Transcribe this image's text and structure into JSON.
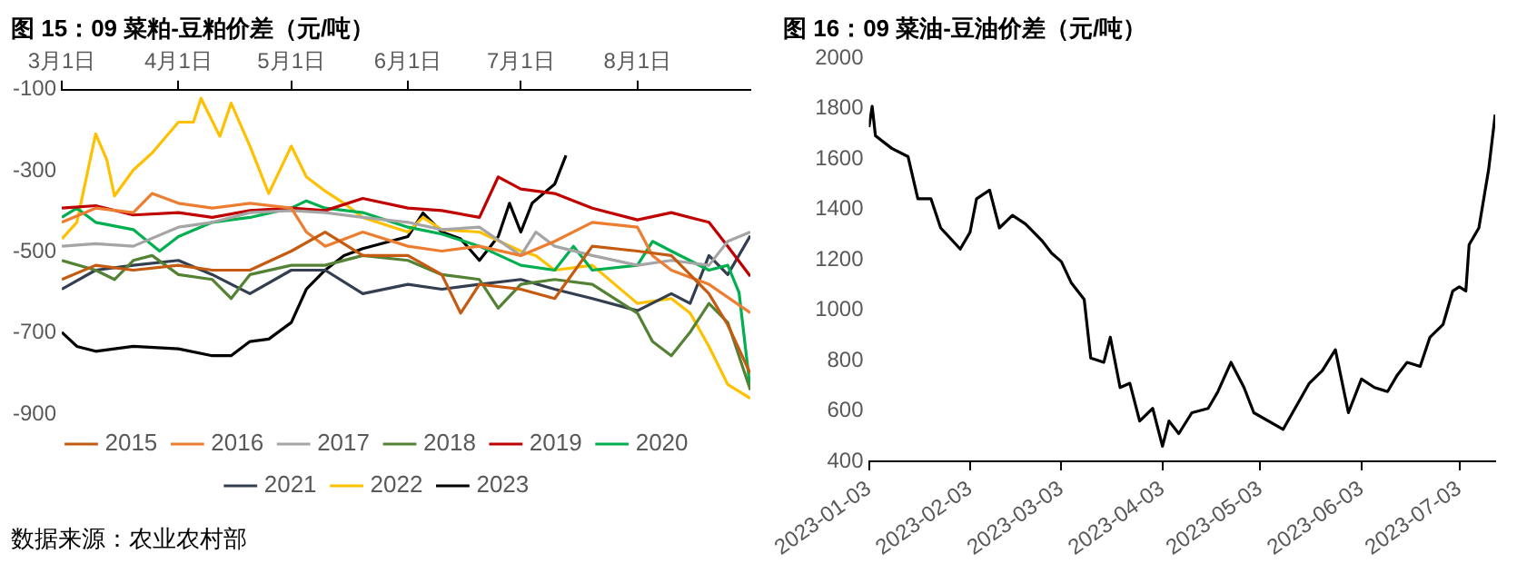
{
  "chart_data": [
    {
      "type": "line",
      "title": "图 15：09 菜粕-豆粕价差（元/吨）",
      "annotations": [
        "数据来源：农业农村部"
      ],
      "xlim": [
        "--03-01",
        "--08-31"
      ],
      "xticks": [
        {
          "value": "--03-01",
          "label": "3月1日"
        },
        {
          "value": "--04-01",
          "label": "4月1日"
        },
        {
          "value": "--05-01",
          "label": "5月1日"
        },
        {
          "value": "--06-01",
          "label": "6月1日"
        },
        {
          "value": "--07-01",
          "label": "7月1日"
        },
        {
          "value": "--08-01",
          "label": "8月1日"
        }
      ],
      "ylim": [
        -900,
        -100
      ],
      "yticks": [
        -100,
        -300,
        -500,
        -700,
        -900
      ],
      "grid": false,
      "legend": "bottom",
      "marker": "none",
      "line_style": "solid",
      "series": [
        {
          "name": "2015",
          "color": "#c55a11",
          "x": [
            "--03-01",
            "--03-10",
            "--03-20",
            "--04-01",
            "--04-10",
            "--04-20",
            "--05-01",
            "--05-10",
            "--05-20",
            "--06-01",
            "--06-10",
            "--06-15",
            "--06-20",
            "--07-01",
            "--07-10",
            "--07-20",
            "--08-01",
            "--08-10",
            "--08-20",
            "--08-25",
            "--08-31"
          ],
          "values": [
            -568,
            -533,
            -545,
            -533,
            -545,
            -545,
            -498,
            -451,
            -509,
            -509,
            -556,
            -651,
            -580,
            -592,
            -615,
            -486,
            -498,
            -509,
            -603,
            -680,
            -800
          ]
        },
        {
          "name": "2016",
          "color": "#ed7d31",
          "x": [
            "--03-01",
            "--03-10",
            "--03-20",
            "--03-25",
            "--04-01",
            "--04-10",
            "--04-20",
            "--05-01",
            "--05-05",
            "--05-10",
            "--05-20",
            "--06-01",
            "--06-10",
            "--06-20",
            "--07-01",
            "--07-10",
            "--07-20",
            "--08-01",
            "--08-05",
            "--08-10",
            "--08-20",
            "--08-31"
          ],
          "values": [
            -427,
            -392,
            -403,
            -356,
            -380,
            -392,
            -380,
            -392,
            -451,
            -486,
            -451,
            -486,
            -498,
            -486,
            -509,
            -474,
            -427,
            -439,
            -509,
            -545,
            -580,
            -650
          ]
        },
        {
          "name": "2017",
          "color": "#a5a5a5",
          "x": [
            "--03-01",
            "--03-10",
            "--03-20",
            "--04-01",
            "--04-10",
            "--04-20",
            "--05-01",
            "--05-10",
            "--05-20",
            "--06-01",
            "--06-10",
            "--06-20",
            "--07-01",
            "--07-05",
            "--07-10",
            "--07-20",
            "--08-01",
            "--08-10",
            "--08-20",
            "--08-25",
            "--08-31"
          ],
          "values": [
            -486,
            -480,
            -486,
            -439,
            -427,
            -403,
            -398,
            -403,
            -415,
            -427,
            -445,
            -439,
            -509,
            -451,
            -486,
            -509,
            -533,
            -521,
            -533,
            -474,
            -451
          ]
        },
        {
          "name": "2018",
          "color": "#548235",
          "x": [
            "--03-01",
            "--03-10",
            "--03-15",
            "--03-20",
            "--03-25",
            "--04-01",
            "--04-10",
            "--04-15",
            "--04-20",
            "--05-01",
            "--05-10",
            "--05-20",
            "--06-01",
            "--06-10",
            "--06-20",
            "--06-25",
            "--07-01",
            "--07-10",
            "--07-20",
            "--08-01",
            "--08-05",
            "--08-10",
            "--08-15",
            "--08-20",
            "--08-25",
            "--08-31"
          ],
          "values": [
            -521,
            -545,
            -568,
            -521,
            -509,
            -556,
            -568,
            -615,
            -556,
            -533,
            -533,
            -509,
            -521,
            -556,
            -568,
            -639,
            -580,
            -568,
            -580,
            -651,
            -721,
            -756,
            -698,
            -627,
            -674,
            -840
          ]
        },
        {
          "name": "2019",
          "color": "#c00000",
          "x": [
            "--03-01",
            "--03-10",
            "--03-20",
            "--04-01",
            "--04-10",
            "--04-20",
            "--05-01",
            "--05-10",
            "--05-20",
            "--06-01",
            "--06-10",
            "--06-20",
            "--06-25",
            "--07-01",
            "--07-10",
            "--07-20",
            "--08-01",
            "--08-10",
            "--08-20",
            "--08-25",
            "--08-31"
          ],
          "values": [
            -392,
            -386,
            -409,
            -403,
            -415,
            -398,
            -392,
            -398,
            -368,
            -392,
            -398,
            -415,
            -315,
            -345,
            -356,
            -392,
            -421,
            -403,
            -427,
            -486,
            -560
          ]
        },
        {
          "name": "2020",
          "color": "#00b050",
          "x": [
            "--03-01",
            "--03-05",
            "--03-10",
            "--03-20",
            "--03-27",
            "--04-01",
            "--04-10",
            "--04-20",
            "--05-01",
            "--05-05",
            "--05-10",
            "--05-20",
            "--06-01",
            "--06-10",
            "--06-20",
            "--07-01",
            "--07-10",
            "--07-15",
            "--07-20",
            "--08-01",
            "--08-05",
            "--08-10",
            "--08-20",
            "--08-25",
            "--08-28",
            "--08-31"
          ],
          "values": [
            -415,
            -392,
            -427,
            -445,
            -498,
            -462,
            -427,
            -415,
            -392,
            -374,
            -392,
            -403,
            -439,
            -456,
            -486,
            -533,
            -545,
            -486,
            -545,
            -533,
            -474,
            -498,
            -545,
            -533,
            -600,
            -840
          ]
        },
        {
          "name": "2021",
          "color": "#333f50",
          "x": [
            "--03-01",
            "--03-10",
            "--03-20",
            "--04-01",
            "--04-10",
            "--04-20",
            "--05-01",
            "--05-10",
            "--05-20",
            "--06-01",
            "--06-10",
            "--06-20",
            "--07-01",
            "--07-10",
            "--07-20",
            "--08-01",
            "--08-10",
            "--08-15",
            "--08-20",
            "--08-25",
            "--08-31"
          ],
          "values": [
            -592,
            -545,
            -533,
            -521,
            -556,
            -603,
            -545,
            -545,
            -603,
            -580,
            -592,
            -580,
            -568,
            -592,
            -615,
            -645,
            -603,
            -627,
            -509,
            -556,
            -460
          ]
        },
        {
          "name": "2022",
          "color": "#ffc000",
          "x": [
            "--03-01",
            "--03-05",
            "--03-10",
            "--03-13",
            "--03-15",
            "--03-20",
            "--03-25",
            "--04-01",
            "--04-05",
            "--04-07",
            "--04-12",
            "--04-15",
            "--04-20",
            "--04-25",
            "--05-01",
            "--05-05",
            "--05-10",
            "--05-15",
            "--05-20",
            "--06-01",
            "--06-05",
            "--06-10",
            "--06-20",
            "--07-01",
            "--07-05",
            "--07-10",
            "--07-20",
            "--08-01",
            "--08-10",
            "--08-15",
            "--08-20",
            "--08-25",
            "--08-31"
          ],
          "values": [
            -468,
            -427,
            -209,
            -274,
            -362,
            -298,
            -256,
            -180,
            -180,
            -121,
            -215,
            -133,
            -239,
            -356,
            -239,
            -315,
            -350,
            -380,
            -415,
            -451,
            -415,
            -445,
            -451,
            -498,
            -509,
            -545,
            -533,
            -627,
            -615,
            -651,
            -733,
            -827,
            -861
          ]
        },
        {
          "name": "2023",
          "color": "#000000",
          "x": [
            "--03-01",
            "--03-05",
            "--03-10",
            "--03-20",
            "--04-01",
            "--04-10",
            "--04-15",
            "--04-20",
            "--04-25",
            "--05-01",
            "--05-05",
            "--05-10",
            "--05-15",
            "--05-20",
            "--06-01",
            "--06-05",
            "--06-10",
            "--06-15",
            "--06-20",
            "--06-25",
            "--06-28",
            "--07-01",
            "--07-04",
            "--07-07",
            "--07-10",
            "--07-13"
          ],
          "values": [
            -698,
            -733,
            -745,
            -733,
            -739,
            -756,
            -756,
            -721,
            -715,
            -674,
            -592,
            -545,
            -509,
            -492,
            -462,
            -404,
            -451,
            -468,
            -521,
            -462,
            -380,
            -451,
            -380,
            -356,
            -333,
            -262
          ]
        }
      ]
    },
    {
      "type": "line",
      "title": "图 16：09 菜油-豆油价差（元/吨）",
      "xlim": [
        "2023-01-03",
        "2023-07-14"
      ],
      "xticks": [
        "2023-01-03",
        "2023-02-03",
        "2023-03-03",
        "2023-04-03",
        "2023-05-03",
        "2023-06-03",
        "2023-07-03"
      ],
      "ylim": [
        400,
        2000
      ],
      "yticks": [
        400,
        600,
        800,
        1000,
        1200,
        1400,
        1600,
        1800,
        2000
      ],
      "grid": false,
      "marker": "none",
      "line_style": "solid",
      "series": [
        {
          "color": "#000000",
          "x": [
            "2023-01-03",
            "2023-01-04",
            "2023-01-05",
            "2023-01-10",
            "2023-01-15",
            "2023-01-18",
            "2023-01-22",
            "2023-01-25",
            "2023-01-31",
            "2023-02-03",
            "2023-02-05",
            "2023-02-09",
            "2023-02-12",
            "2023-02-16",
            "2023-02-20",
            "2023-02-25",
            "2023-02-28",
            "2023-03-03",
            "2023-03-06",
            "2023-03-10",
            "2023-03-12",
            "2023-03-16",
            "2023-03-18",
            "2023-03-21",
            "2023-03-24",
            "2023-03-27",
            "2023-03-31",
            "2023-04-03",
            "2023-04-05",
            "2023-04-08",
            "2023-04-12",
            "2023-04-17",
            "2023-04-20",
            "2023-04-24",
            "2023-04-28",
            "2023-05-01",
            "2023-05-10",
            "2023-05-18",
            "2023-05-22",
            "2023-05-26",
            "2023-05-30",
            "2023-06-03",
            "2023-06-07",
            "2023-06-11",
            "2023-06-14",
            "2023-06-17",
            "2023-06-21",
            "2023-06-24",
            "2023-06-28",
            "2023-07-01",
            "2023-07-03",
            "2023-07-05",
            "2023-07-06",
            "2023-07-09",
            "2023-07-12",
            "2023-07-14"
          ],
          "values": [
            1727,
            1810,
            1693,
            1643,
            1610,
            1443,
            1443,
            1327,
            1243,
            1310,
            1443,
            1477,
            1327,
            1377,
            1343,
            1277,
            1227,
            1193,
            1110,
            1043,
            810,
            793,
            893,
            693,
            710,
            560,
            610,
            460,
            560,
            510,
            593,
            610,
            677,
            793,
            693,
            593,
            527,
            710,
            760,
            843,
            593,
            727,
            693,
            677,
            743,
            793,
            777,
            893,
            943,
            1077,
            1093,
            1077,
            1260,
            1327,
            1560,
            1777
          ]
        }
      ]
    }
  ]
}
